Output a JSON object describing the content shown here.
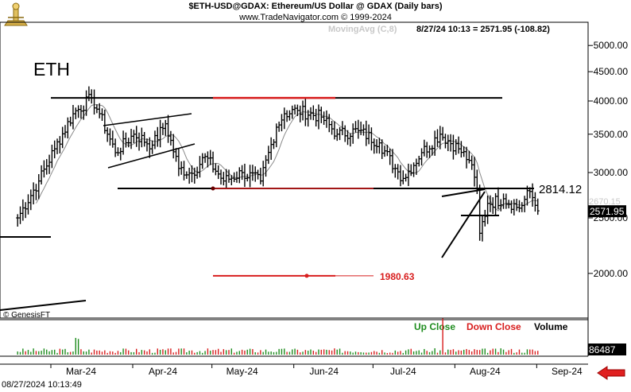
{
  "header": {
    "title": "$ETH-USD@GDAX:  Ethereum/US Dollar @ GDAX  (Daily bars)",
    "subtitle": "www.TradeNavigator.com © 1999-2024",
    "indicator_label": "MovingAvg (C,8)",
    "price_readout": "8/27/24 10:13 = 2571.95 (-108.82)"
  },
  "symbol_label": "ETH",
  "credit": "© GenesisFT",
  "timestamp": "08/27/2024 10:13:49",
  "colors": {
    "bar": "#000000",
    "ma": "#8a8a8a",
    "accent_red": "#d81e1e",
    "up_green": "#1e8c1e"
  },
  "icons": {
    "logo": "genesis-logo-icon",
    "nav": "red-left-arrow-icon"
  },
  "chart_data": {
    "type": "ohlc",
    "scale": "log",
    "price_axis": {
      "ticks": [
        "5000.00",
        "4500.00",
        "4000.00",
        "3500.00",
        "3000.00",
        "2500.00",
        "2000.00"
      ],
      "ylim": [
        1700,
        5300
      ]
    },
    "x_axis": {
      "ticks": [
        "Mar-24",
        "Apr-24",
        "May-24",
        "Jun-24",
        "Jul-24",
        "Aug-24",
        "Sep-24"
      ]
    },
    "last_price_label": "2571.95",
    "last_price_ghost": "2670.15",
    "levels": {
      "support_label": "2814.12",
      "target_label": "1980.63",
      "resistance": 4050,
      "support": 2814.12,
      "target": 1980.63
    },
    "series": [
      {
        "name": "Up Close"
      },
      {
        "name": "Down Close"
      },
      {
        "name": "Volume",
        "last_value": "86487"
      }
    ],
    "closes_anchor": [
      [
        "2024-02-12",
        2500
      ],
      [
        "2024-02-20",
        2900
      ],
      [
        "2024-02-26",
        3300
      ],
      [
        "2024-03-04",
        3800
      ],
      [
        "2024-03-11",
        4050
      ],
      [
        "2024-03-14",
        3800
      ],
      [
        "2024-03-20",
        3250
      ],
      [
        "2024-03-27",
        3500
      ],
      [
        "2024-04-03",
        3350
      ],
      [
        "2024-04-08",
        3650
      ],
      [
        "2024-04-13",
        3050
      ],
      [
        "2024-04-18",
        2990
      ],
      [
        "2024-04-23",
        3200
      ],
      [
        "2024-04-30",
        2900
      ],
      [
        "2024-05-07",
        3000
      ],
      [
        "2024-05-14",
        2900
      ],
      [
        "2024-05-20",
        3600
      ],
      [
        "2024-05-23",
        3800
      ],
      [
        "2024-05-28",
        3850
      ],
      [
        "2024-06-06",
        3750
      ],
      [
        "2024-06-12",
        3500
      ],
      [
        "2024-06-20",
        3550
      ],
      [
        "2024-06-28",
        3380
      ],
      [
        "2024-07-04",
        3050
      ],
      [
        "2024-07-07",
        2930
      ],
      [
        "2024-07-14",
        3250
      ],
      [
        "2024-07-21",
        3500
      ],
      [
        "2024-07-28",
        3300
      ],
      [
        "2024-08-01",
        3150
      ],
      [
        "2024-08-04",
        2800
      ],
      [
        "2024-08-05",
        2350
      ],
      [
        "2024-08-08",
        2650
      ],
      [
        "2024-08-14",
        2700
      ],
      [
        "2024-08-20",
        2600
      ],
      [
        "2024-08-24",
        2780
      ],
      [
        "2024-08-27",
        2571.95
      ]
    ]
  },
  "volume_legend": {
    "up": "Up Close",
    "down": "Down Close",
    "volume": "Volume",
    "last": "86487"
  }
}
